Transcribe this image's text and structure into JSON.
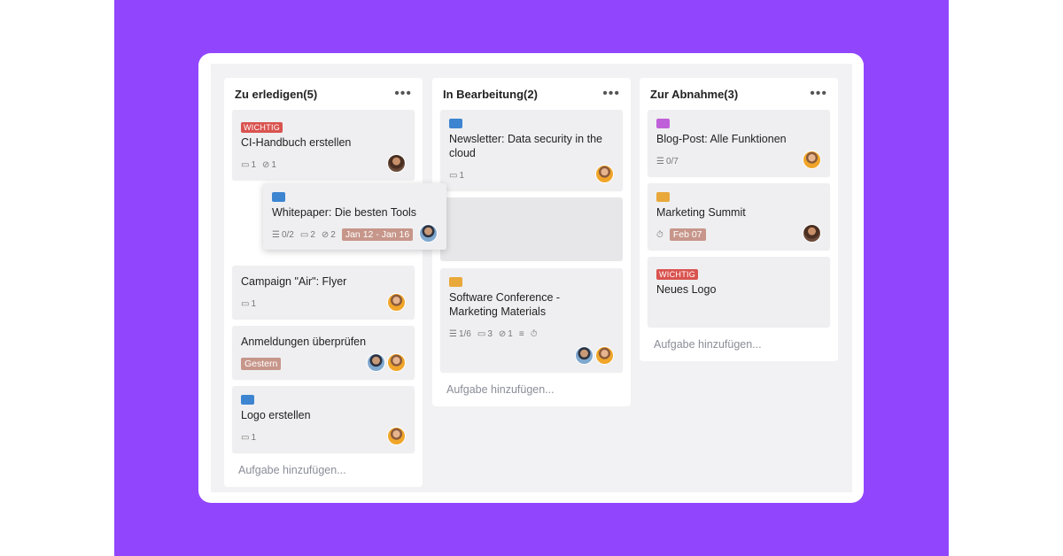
{
  "colors": {
    "background": "#9146fe",
    "wichtig": "#d9534f",
    "blue": "#3d85d1",
    "orange": "#e8a83a",
    "purple": "#c060d8",
    "date": "#c7968a"
  },
  "columns": [
    {
      "title": "Zu erledigen(5)",
      "add_label": "Aufgabe hinzufügen...",
      "cards": [
        {
          "label_text": "WICHTIG",
          "title": "CI-Handbuch erstellen",
          "comments": "1",
          "attachments": "1",
          "avatars": [
            "brown"
          ]
        },
        {
          "placeholder_gap": true
        },
        {
          "title": "Campaign \"Air\": Flyer",
          "comments": "1",
          "avatars": [
            "orange"
          ]
        },
        {
          "title": "Anmeldungen überprüfen",
          "date": "Gestern",
          "avatars": [
            "blue",
            "orange"
          ]
        },
        {
          "label_color": "#3d85d1",
          "title": "Logo erstellen",
          "comments": "1",
          "avatars": [
            "orange"
          ]
        }
      ]
    },
    {
      "title": "In Bearbeitung(2)",
      "add_label": "Aufgabe hinzufügen...",
      "cards": [
        {
          "label_color": "#3d85d1",
          "title": "Newsletter: Data security in the cloud",
          "comments": "1",
          "avatars": [
            "orange"
          ]
        },
        {
          "placeholder": true
        },
        {
          "label_color": "#e8a83a",
          "title": "Software Conference - Marketing Materials",
          "checklist": "1/6",
          "comments": "3",
          "attachments": "1",
          "description": true,
          "timer": true,
          "avatars": [
            "blue",
            "orange"
          ],
          "tall": true
        }
      ]
    },
    {
      "title": "Zur Abnahme(3)",
      "add_label": "Aufgabe hinzufügen...",
      "cards": [
        {
          "label_color": "#c060d8",
          "title": "Blog-Post: Alle Funktionen",
          "checklist": "0/7",
          "avatars": [
            "orange"
          ]
        },
        {
          "label_color": "#e8a83a",
          "title": "Marketing Summit",
          "timer": true,
          "date": "Feb 07",
          "avatars": [
            "brown"
          ]
        },
        {
          "label_text": "WICHTIG",
          "title": "Neues Logo",
          "avatars": []
        }
      ]
    }
  ],
  "dragging": {
    "label_color": "#3d85d1",
    "title": "Whitepaper: Die besten Tools",
    "checklist": "0/2",
    "comments": "2",
    "attachments": "2",
    "date": "Jan 12 - Jan 16",
    "avatars": [
      "blue"
    ]
  }
}
